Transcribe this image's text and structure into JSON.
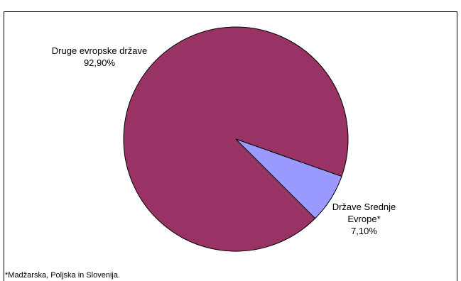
{
  "chart_data": {
    "type": "pie",
    "categories": [
      "Druge evropske države",
      "Države Srednje Evrope*"
    ],
    "values": [
      92.9,
      7.1
    ],
    "value_labels": [
      "92,90%",
      "7,10%"
    ],
    "colors": [
      "#993366",
      "#9999ff"
    ],
    "footnote": "*Madžarska, Poljska in Slovenija."
  }
}
